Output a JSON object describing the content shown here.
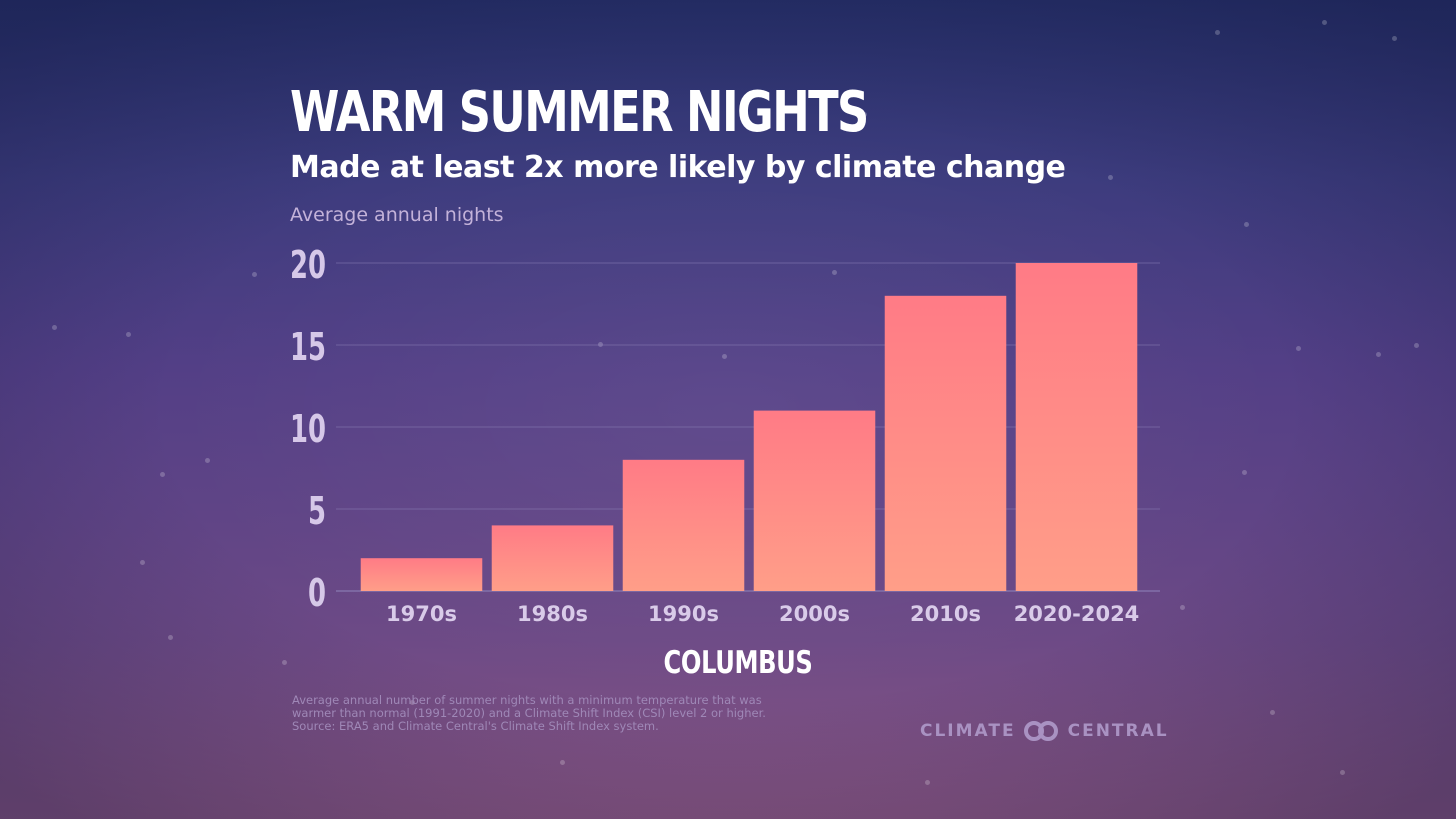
{
  "header": {
    "title": "WARM SUMMER NIGHTS",
    "subtitle": "Made at least 2x more likely by climate change"
  },
  "chart_data": {
    "type": "bar",
    "title": "WARM SUMMER NIGHTS",
    "subtitle": "Made at least 2x more likely by climate change",
    "ylabel": "Average annual nights",
    "xlabel": "COLUMBUS",
    "categories": [
      "1970s",
      "1980s",
      "1990s",
      "2000s",
      "2010s",
      "2020-2024"
    ],
    "values": [
      2,
      4,
      8,
      11,
      18,
      20
    ],
    "ylim": [
      0,
      20
    ],
    "yticks": [
      0,
      5,
      10,
      15,
      20
    ],
    "grid": true,
    "bar_color_top": "#ff7b86",
    "bar_color_bottom": "#ff9e88"
  },
  "footnote": {
    "lines": [
      "Average annual number of summer nights with a minimum temperature that was",
      "warmer than normal (1991-2020) and a Climate Shift Index (CSI) level 2 or higher.",
      "Source: ERA5 and Climate Central's Climate Shift Index system."
    ]
  },
  "brand": {
    "left": "CLIMATE",
    "right": "CENTRAL",
    "icon": "climate-central-logo-icon"
  },
  "colors": {
    "grid": "#8b7fb6",
    "tick_text": "#d6c8e8",
    "category_text": "#d9cbe9"
  }
}
